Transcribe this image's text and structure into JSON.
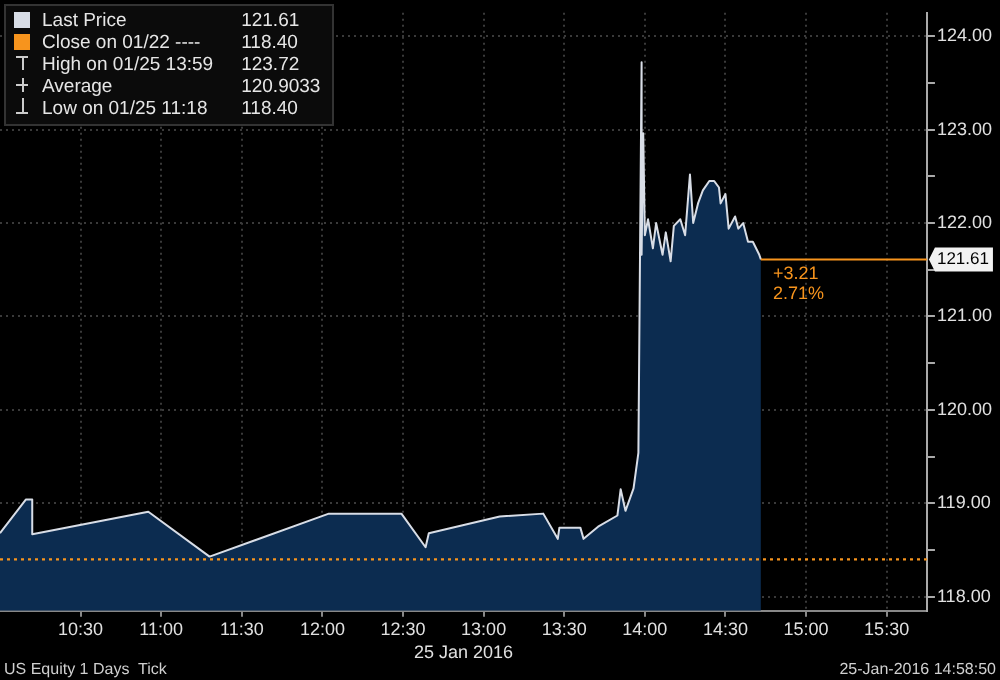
{
  "chart_data": {
    "type": "area",
    "xlabel": "25 Jan 2016",
    "x": [
      10.0,
      10.16,
      10.2,
      10.2,
      10.92,
      11.3,
      12.04,
      12.49,
      12.64,
      12.66,
      13.1,
      13.37,
      13.46,
      13.47,
      13.6,
      13.62,
      13.71,
      13.83,
      13.85,
      13.88,
      13.93,
      13.96,
      13.98,
      13.98,
      13.99,
      14.0,
      14.02,
      14.05,
      14.07,
      14.11,
      14.13,
      14.16,
      14.18,
      14.22,
      14.25,
      14.28,
      14.3,
      14.33,
      14.36,
      14.4,
      14.43,
      14.46,
      14.47,
      14.5,
      14.52,
      14.56,
      14.58,
      14.61,
      14.64,
      14.67,
      14.71,
      14.72
    ],
    "series": [
      {
        "name": "Last Price",
        "color": "#d8dde6",
        "values": [
          118.68,
          119.04,
          119.04,
          118.67,
          118.91,
          118.43,
          118.89,
          118.89,
          118.53,
          118.68,
          118.86,
          118.89,
          118.62,
          118.74,
          118.74,
          118.62,
          118.75,
          118.87,
          119.15,
          118.92,
          119.16,
          119.54,
          123.72,
          121.66,
          122.96,
          121.87,
          122.04,
          121.73,
          122.0,
          121.66,
          121.9,
          121.59,
          121.97,
          122.04,
          121.87,
          122.52,
          122.0,
          122.21,
          122.35,
          122.45,
          122.45,
          122.38,
          122.21,
          122.31,
          121.94,
          122.07,
          121.94,
          122.0,
          121.8,
          121.8,
          121.66,
          121.61
        ]
      }
    ],
    "xlim": [
      10.0,
      15.75
    ],
    "xticks": [
      {
        "value": 10.5,
        "label": "10:30"
      },
      {
        "value": 11,
        "label": "11:00"
      },
      {
        "value": 11.5,
        "label": "11:30"
      },
      {
        "value": 12,
        "label": "12:00"
      },
      {
        "value": 12.5,
        "label": "12:30"
      },
      {
        "value": 13,
        "label": "13:00"
      },
      {
        "value": 13.5,
        "label": "13:30"
      },
      {
        "value": 14,
        "label": "14:00"
      },
      {
        "value": 14.5,
        "label": "14:30"
      },
      {
        "value": 15,
        "label": "15:00"
      },
      {
        "value": 15.5,
        "label": "15:30"
      }
    ],
    "ylim": [
      117.85,
      124.25
    ],
    "yticks": [
      {
        "value": 118,
        "label": "118.00"
      },
      {
        "value": 118.5,
        "label": null
      },
      {
        "value": 119,
        "label": "119.00"
      },
      {
        "value": 119.5,
        "label": null
      },
      {
        "value": 120,
        "label": "120.00"
      },
      {
        "value": 120.5,
        "label": null
      },
      {
        "value": 121,
        "label": "121.00"
      },
      {
        "value": 121.5,
        "label": null
      },
      {
        "value": 122,
        "label": "122.00"
      },
      {
        "value": 122.5,
        "label": null
      },
      {
        "value": 123,
        "label": "123.00"
      },
      {
        "value": 123.5,
        "label": null
      },
      {
        "value": 124,
        "label": "124.00"
      }
    ],
    "ref_lines": [
      {
        "axis": "y",
        "value": 118.4,
        "label": "Close on 01/22 ----",
        "color": "#f7941d",
        "line_style": "dotted"
      }
    ],
    "annotations": [
      "121.61",
      "118.40",
      "High on 01/25 13:59",
      "123.72",
      "Average",
      "120.9033",
      "Low on 01/25 11:18",
      "118.40",
      {
        "text": "121.61",
        "x": 14.72,
        "y": 121.61
      },
      "+3.21",
      "2.71%",
      "US Equity 1 Days  Tick",
      "25-Jan-2016 14:58:50"
    ],
    "grid": true,
    "legend": "top left",
    "line_style": "solid",
    "marker": "none"
  }
}
